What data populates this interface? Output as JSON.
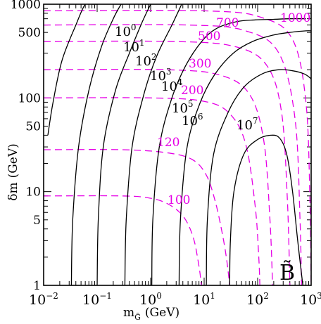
{
  "chart_data": {
    "type": "line",
    "xlabel": {
      "main": "m",
      "sub": "G̃",
      "unit": "(GeV)"
    },
    "ylabel": {
      "main": "δm",
      "unit": "(GeV)"
    },
    "x_scale": "log",
    "y_scale": "log",
    "xlim": [
      0.01,
      1000
    ],
    "ylim": [
      1,
      1000
    ],
    "grid": false,
    "legend": "none",
    "panel_label": "B̃",
    "x_major_ticks": [
      {
        "value": 0.01,
        "base": "10",
        "exp": "−2"
      },
      {
        "value": 0.1,
        "base": "10",
        "exp": "−1"
      },
      {
        "value": 1,
        "base": "10",
        "exp": "0"
      },
      {
        "value": 10,
        "base": "10",
        "exp": "1"
      },
      {
        "value": 100,
        "base": "10",
        "exp": "2"
      },
      {
        "value": 1000,
        "base": "10",
        "exp": "3"
      }
    ],
    "y_tick_labels": [
      {
        "value": 1,
        "label": "1"
      },
      {
        "value": 5,
        "label": "5"
      },
      {
        "value": 10,
        "label": "10"
      },
      {
        "value": 50,
        "label": "50"
      },
      {
        "value": 100,
        "label": "100"
      },
      {
        "value": 500,
        "label": "500"
      },
      {
        "value": 1000,
        "label": "1000"
      }
    ],
    "colors": {
      "solid": "#000000",
      "dashed": "#e600e6",
      "frame": "#000000"
    },
    "solid_contours": [
      {
        "label_base": "10",
        "label_exp": "0",
        "x": [
          0.012,
          0.015,
          0.022,
          0.04,
          0.06,
          0.08,
          0.095,
          0.105
        ],
        "y": [
          40,
          90,
          250,
          600,
          1000,
          1000,
          1000,
          1000
        ]
      },
      {
        "label_base": "10",
        "label_exp": "1",
        "x": [
          0.033,
          0.035,
          0.045,
          0.07,
          0.12,
          0.2,
          0.28
        ],
        "y": [
          1,
          5,
          30,
          120,
          350,
          700,
          1000
        ]
      },
      {
        "label_base": "10",
        "label_exp": "2",
        "x": [
          0.1,
          0.105,
          0.13,
          0.22,
          0.4,
          0.7,
          1.0
        ],
        "y": [
          1,
          5,
          30,
          120,
          300,
          650,
          1000
        ]
      },
      {
        "label_base": "10",
        "label_exp": "3",
        "x": [
          0.33,
          0.35,
          0.45,
          0.75,
          1.3,
          2.5,
          3.8
        ],
        "y": [
          1,
          5,
          30,
          110,
          280,
          600,
          1000
        ]
      },
      {
        "label_base": "10",
        "label_exp": "4",
        "x": [
          1.05,
          1.1,
          1.45,
          2.5,
          4.5,
          9,
          17,
          40,
          90,
          200,
          400,
          800
        ],
        "y": [
          1,
          5,
          30,
          100,
          220,
          400,
          550,
          650,
          680,
          690,
          700,
          700
        ]
      },
      {
        "label_base": "10",
        "label_exp": "5",
        "x": [
          3.4,
          3.6,
          4.8,
          8.5,
          16,
          35,
          80,
          200,
          400,
          800,
          1000
        ],
        "y": [
          1,
          5,
          30,
          90,
          180,
          300,
          400,
          470,
          500,
          520,
          520
        ]
      },
      {
        "label_base": "10",
        "label_exp": "6",
        "x": [
          11,
          11.5,
          15,
          28,
          55,
          120,
          250,
          450,
          750,
          1000
        ],
        "y": [
          1,
          5,
          25,
          70,
          130,
          180,
          200,
          195,
          180,
          160
        ]
      },
      {
        "label_base": "10",
        "label_exp": "7",
        "x": [
          30,
          31,
          36,
          55,
          100,
          180,
          260,
          350,
          450,
          560,
          700
        ],
        "y": [
          1,
          3,
          10,
          25,
          36,
          40,
          37,
          25,
          10,
          3,
          1
        ]
      }
    ],
    "dashed_contours": [
      {
        "label": "100",
        "x": [
          0.01,
          0.3,
          1,
          2,
          3.5,
          5,
          6.5,
          7.5,
          8.3,
          8.7,
          9
        ],
        "y": [
          9,
          9,
          8.5,
          7.5,
          6,
          4.5,
          3,
          2,
          1.4,
          1.1,
          1
        ]
      },
      {
        "label": "120",
        "x": [
          0.01,
          0.3,
          2,
          6,
          11,
          16,
          21,
          26,
          30
        ],
        "y": [
          28,
          28,
          26,
          22,
          15,
          8,
          4,
          2,
          1
        ]
      },
      {
        "label": "200",
        "x": [
          0.01,
          1,
          10,
          30,
          60,
          90,
          105,
          110
        ],
        "y": [
          100,
          100,
          92,
          68,
          32,
          7,
          2,
          1
        ]
      },
      {
        "label": "300",
        "x": [
          0.01,
          2,
          20,
          70,
          130,
          170,
          190
        ],
        "y": [
          200,
          200,
          175,
          110,
          35,
          5,
          1
        ]
      },
      {
        "label": "500",
        "x": [
          0.01,
          3,
          40,
          150,
          280,
          360,
          400
        ],
        "y": [
          400,
          400,
          350,
          220,
          70,
          8,
          1
        ]
      },
      {
        "label": "700",
        "x": [
          0.01,
          5,
          60,
          250,
          500,
          620,
          660
        ],
        "y": [
          600,
          600,
          520,
          300,
          60,
          5,
          1
        ]
      },
      {
        "label": "1000",
        "x": [
          0.01,
          10,
          120,
          450,
          800,
          950,
          1000
        ],
        "y": [
          850,
          850,
          720,
          420,
          90,
          8,
          1
        ]
      }
    ]
  }
}
